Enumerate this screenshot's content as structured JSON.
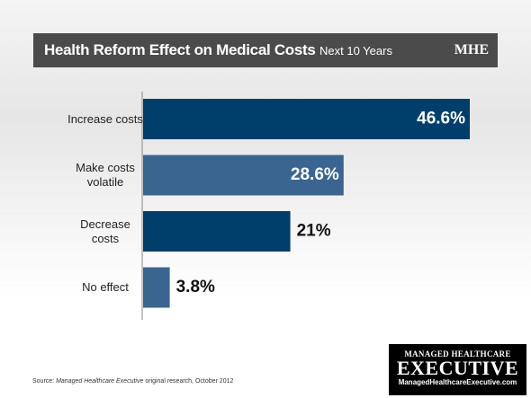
{
  "chart_data": {
    "type": "bar",
    "orientation": "horizontal",
    "title": "Health Reform Effect on Medical Costs",
    "subtitle": "Next 10 Years",
    "brand": "MHE",
    "categories": [
      "Increase costs",
      "Make costs volatile",
      "Decrease costs",
      "No effect"
    ],
    "values": [
      46.6,
      28.6,
      21,
      3.8
    ],
    "value_labels": [
      "46.6%",
      "28.6%",
      "21%",
      "3.8%"
    ],
    "colors": [
      "#003f6b",
      "#3a6591",
      "#003f6b",
      "#3a6591"
    ],
    "source": {
      "prefix": "Source:",
      "publication": "Managed Healthcare Executive",
      "suffix": "original research, October 2012"
    },
    "logo": {
      "top": "MANAGED HEALTHCARE",
      "name": "EXECUTIVE",
      "url": "ManagedHealthcareExecutive.com"
    }
  }
}
